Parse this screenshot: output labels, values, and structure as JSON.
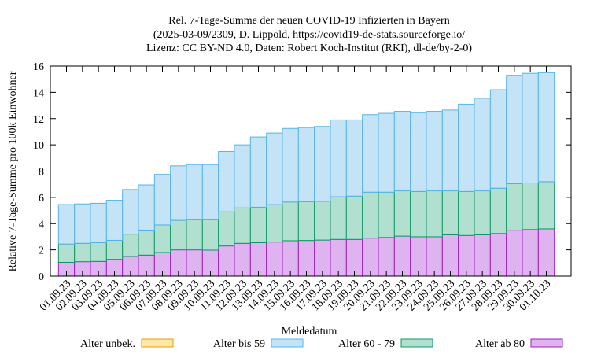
{
  "chart_data": {
    "type": "bar",
    "stacked": true,
    "title": [
      "Rel. 7-Tage-Summe der neuen COVID-19 Infizierten in Bayern",
      "(2025-03-09/2309, D. Lippold, https://covid19-de-stats.sourceforge.io/",
      "Lizenz: CC BY-ND 4.0, Daten: Robert Koch-Institut (RKI), dl-de/by-2-0)"
    ],
    "xlabel": "Meldedatum",
    "ylabel": "Relative 7-Tage-Summe pro 100k Einwohner",
    "ylim": [
      0,
      16
    ],
    "yticks": [
      0,
      2,
      4,
      6,
      8,
      10,
      12,
      14,
      16
    ],
    "grid": false,
    "legend_position": "bottom",
    "categories": [
      "01.09.23",
      "02.09.23",
      "03.09.23",
      "04.09.23",
      "05.09.23",
      "06.09.23",
      "07.09.23",
      "08.09.23",
      "09.09.23",
      "10.09.23",
      "11.09.23",
      "12.09.23",
      "13.09.23",
      "14.09.23",
      "15.09.23",
      "16.09.23",
      "17.09.23",
      "18.09.23",
      "19.09.23",
      "20.09.23",
      "21.09.23",
      "22.09.23",
      "23.09.23",
      "24.09.23",
      "25.09.23",
      "26.09.23",
      "27.09.23",
      "28.09.23",
      "29.09.23",
      "30.09.23",
      "01.10.23"
    ],
    "series": [
      {
        "name": "Alter ab 80",
        "fill": "#dfb3f0",
        "stroke": "#a020c0",
        "values": [
          1.05,
          1.1,
          1.12,
          1.28,
          1.5,
          1.6,
          1.8,
          2.0,
          2.0,
          1.98,
          2.3,
          2.5,
          2.55,
          2.6,
          2.7,
          2.72,
          2.75,
          2.8,
          2.8,
          2.9,
          2.95,
          3.05,
          3.0,
          3.0,
          3.15,
          3.1,
          3.15,
          3.25,
          3.5,
          3.55,
          3.6
        ]
      },
      {
        "name": "Alter 60 - 79",
        "fill": "#b2e0d0",
        "stroke": "#119966",
        "values": [
          1.4,
          1.4,
          1.43,
          1.45,
          1.7,
          1.85,
          2.1,
          2.25,
          2.3,
          2.32,
          2.6,
          2.7,
          2.7,
          2.85,
          2.95,
          2.95,
          2.95,
          3.25,
          3.3,
          3.5,
          3.45,
          3.45,
          3.45,
          3.5,
          3.35,
          3.35,
          3.35,
          3.45,
          3.55,
          3.55,
          3.6
        ]
      },
      {
        "name": "Alter bis 59",
        "fill": "#c5e3f7",
        "stroke": "#56b4e9",
        "values": [
          3.0,
          3.0,
          3.0,
          3.05,
          3.4,
          3.5,
          3.85,
          4.15,
          4.2,
          4.2,
          4.6,
          4.8,
          5.35,
          5.45,
          5.6,
          5.65,
          5.7,
          5.85,
          5.8,
          5.9,
          6.0,
          6.05,
          6.0,
          6.05,
          6.15,
          6.65,
          7.05,
          7.5,
          8.25,
          8.35,
          8.3
        ]
      },
      {
        "name": "Alter unbek.",
        "fill": "#fde7a8",
        "stroke": "#e69f00",
        "values": [
          0,
          0,
          0,
          0,
          0,
          0,
          0,
          0,
          0,
          0,
          0,
          0,
          0,
          0,
          0,
          0,
          0,
          0,
          0,
          0,
          0,
          0,
          0,
          0,
          0,
          0,
          0,
          0,
          0,
          0,
          0
        ]
      }
    ],
    "legend": [
      "Alter unbek.",
      "Alter bis 59",
      "Alter 60 - 79",
      "Alter ab 80"
    ]
  }
}
